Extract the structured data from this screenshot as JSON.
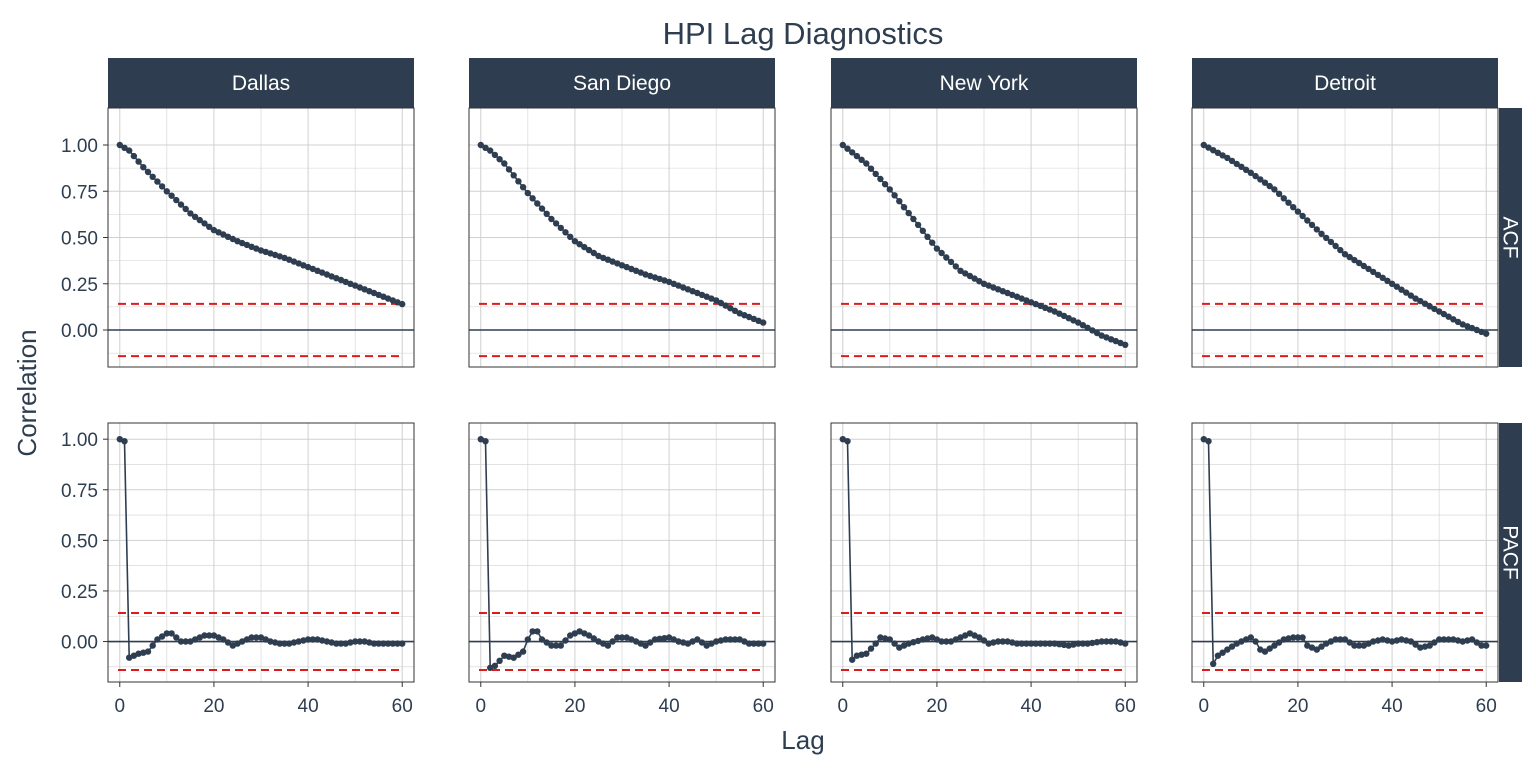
{
  "chart_data": {
    "type": "line",
    "title": "HPI Lag Diagnostics",
    "xlabel": "Lag",
    "ylabel": "Correlation",
    "xlim": [
      -2.5,
      62.5
    ],
    "x_ticks": [
      0,
      20,
      40,
      60
    ],
    "x_tick_labels": [
      "0",
      "20",
      "40",
      "60"
    ],
    "y_ticks": [
      0,
      0.25,
      0.5,
      0.75,
      1
    ],
    "y_tick_labels": [
      "0.00",
      "0.25",
      "0.50",
      "0.75",
      "1.00"
    ],
    "grid": true,
    "legend": "none",
    "confidence_bound": 0.141,
    "colors": {
      "series": "#2e3e50",
      "bound": "#dd1c1c",
      "strip": "#2e3e50",
      "grid": "#d0d0d0",
      "zero": "#2e3e50"
    },
    "columns": [
      "Dallas",
      "San Diego",
      "New York",
      "Detroit"
    ],
    "rows": [
      "ACF",
      "PACF"
    ],
    "row_ylim": {
      "ACF": [
        -0.2,
        1.2
      ],
      "PACF": [
        -0.2,
        1.08
      ]
    },
    "panels": [
      {
        "row": "ACF",
        "column": "Dallas",
        "knots": [
          [
            0,
            1.0
          ],
          [
            2,
            0.97
          ],
          [
            5,
            0.88
          ],
          [
            10,
            0.75
          ],
          [
            15,
            0.63
          ],
          [
            20,
            0.54
          ],
          [
            25,
            0.48
          ],
          [
            30,
            0.43
          ],
          [
            35,
            0.39
          ],
          [
            40,
            0.34
          ],
          [
            45,
            0.29
          ],
          [
            50,
            0.24
          ],
          [
            55,
            0.19
          ],
          [
            60,
            0.14
          ]
        ]
      },
      {
        "row": "ACF",
        "column": "San Diego",
        "knots": [
          [
            0,
            1.0
          ],
          [
            2,
            0.97
          ],
          [
            5,
            0.9
          ],
          [
            10,
            0.74
          ],
          [
            15,
            0.6
          ],
          [
            20,
            0.48
          ],
          [
            25,
            0.4
          ],
          [
            30,
            0.35
          ],
          [
            35,
            0.3
          ],
          [
            40,
            0.26
          ],
          [
            45,
            0.21
          ],
          [
            50,
            0.16
          ],
          [
            55,
            0.09
          ],
          [
            60,
            0.04
          ]
        ]
      },
      {
        "row": "ACF",
        "column": "New York",
        "knots": [
          [
            0,
            1.0
          ],
          [
            5,
            0.9
          ],
          [
            10,
            0.76
          ],
          [
            15,
            0.6
          ],
          [
            20,
            0.44
          ],
          [
            25,
            0.32
          ],
          [
            30,
            0.25
          ],
          [
            35,
            0.2
          ],
          [
            40,
            0.15
          ],
          [
            45,
            0.1
          ],
          [
            50,
            0.04
          ],
          [
            55,
            -0.03
          ],
          [
            60,
            -0.08
          ]
        ]
      },
      {
        "row": "ACF",
        "column": "Detroit",
        "knots": [
          [
            0,
            1.0
          ],
          [
            5,
            0.93
          ],
          [
            10,
            0.85
          ],
          [
            15,
            0.76
          ],
          [
            20,
            0.64
          ],
          [
            25,
            0.52
          ],
          [
            30,
            0.41
          ],
          [
            35,
            0.33
          ],
          [
            40,
            0.25
          ],
          [
            45,
            0.17
          ],
          [
            50,
            0.1
          ],
          [
            55,
            0.03
          ],
          [
            60,
            -0.02
          ]
        ]
      },
      {
        "row": "PACF",
        "column": "Dallas",
        "knots": [
          [
            0,
            1.0
          ],
          [
            1,
            0.99
          ],
          [
            2,
            -0.08
          ],
          [
            4,
            -0.06
          ],
          [
            6,
            -0.05
          ],
          [
            8,
            0.01
          ],
          [
            10,
            0.04
          ],
          [
            11,
            0.04
          ],
          [
            13,
            0.0
          ],
          [
            15,
            0.0
          ],
          [
            18,
            0.03
          ],
          [
            20,
            0.03
          ],
          [
            22,
            0.01
          ],
          [
            24,
            -0.02
          ],
          [
            26,
            0.0
          ],
          [
            28,
            0.02
          ],
          [
            30,
            0.02
          ],
          [
            32,
            0.0
          ],
          [
            34,
            -0.01
          ],
          [
            36,
            -0.01
          ],
          [
            38,
            0.0
          ],
          [
            40,
            0.01
          ],
          [
            42,
            0.01
          ],
          [
            44,
            0.0
          ],
          [
            46,
            -0.01
          ],
          [
            48,
            -0.01
          ],
          [
            50,
            0.0
          ],
          [
            52,
            0.0
          ],
          [
            54,
            -0.01
          ],
          [
            56,
            -0.01
          ],
          [
            58,
            -0.01
          ],
          [
            60,
            -0.01
          ]
        ]
      },
      {
        "row": "PACF",
        "column": "San Diego",
        "knots": [
          [
            0,
            1.0
          ],
          [
            1,
            0.99
          ],
          [
            2,
            -0.13
          ],
          [
            3,
            -0.12
          ],
          [
            5,
            -0.07
          ],
          [
            7,
            -0.08
          ],
          [
            9,
            -0.05
          ],
          [
            10,
            0.01
          ],
          [
            11,
            0.05
          ],
          [
            12,
            0.05
          ],
          [
            13,
            0.01
          ],
          [
            15,
            -0.02
          ],
          [
            17,
            -0.02
          ],
          [
            19,
            0.03
          ],
          [
            21,
            0.05
          ],
          [
            23,
            0.03
          ],
          [
            25,
            0.0
          ],
          [
            27,
            -0.02
          ],
          [
            29,
            0.02
          ],
          [
            31,
            0.02
          ],
          [
            33,
            0.0
          ],
          [
            35,
            -0.02
          ],
          [
            37,
            0.01
          ],
          [
            40,
            0.02
          ],
          [
            42,
            0.0
          ],
          [
            44,
            -0.01
          ],
          [
            46,
            0.01
          ],
          [
            48,
            -0.02
          ],
          [
            50,
            0.0
          ],
          [
            52,
            0.01
          ],
          [
            55,
            0.01
          ],
          [
            57,
            -0.01
          ],
          [
            60,
            -0.01
          ]
        ]
      },
      {
        "row": "PACF",
        "column": "New York",
        "knots": [
          [
            0,
            1.0
          ],
          [
            1,
            0.99
          ],
          [
            2,
            -0.09
          ],
          [
            3,
            -0.07
          ],
          [
            5,
            -0.06
          ],
          [
            7,
            -0.01
          ],
          [
            8,
            0.02
          ],
          [
            10,
            0.01
          ],
          [
            12,
            -0.03
          ],
          [
            14,
            -0.01
          ],
          [
            17,
            0.01
          ],
          [
            19,
            0.02
          ],
          [
            21,
            0.0
          ],
          [
            23,
            0.0
          ],
          [
            25,
            0.02
          ],
          [
            27,
            0.04
          ],
          [
            29,
            0.02
          ],
          [
            31,
            -0.01
          ],
          [
            33,
            0.0
          ],
          [
            35,
            0.0
          ],
          [
            37,
            -0.01
          ],
          [
            40,
            -0.01
          ],
          [
            43,
            -0.01
          ],
          [
            45,
            -0.01
          ],
          [
            48,
            -0.02
          ],
          [
            50,
            -0.01
          ],
          [
            52,
            -0.01
          ],
          [
            55,
            0.0
          ],
          [
            58,
            0.0
          ],
          [
            60,
            -0.01
          ]
        ]
      },
      {
        "row": "PACF",
        "column": "Detroit",
        "knots": [
          [
            0,
            1.0
          ],
          [
            1,
            0.99
          ],
          [
            2,
            -0.11
          ],
          [
            3,
            -0.07
          ],
          [
            5,
            -0.04
          ],
          [
            7,
            -0.01
          ],
          [
            9,
            0.01
          ],
          [
            10,
            0.02
          ],
          [
            11,
            0.0
          ],
          [
            12,
            -0.04
          ],
          [
            13,
            -0.05
          ],
          [
            15,
            -0.02
          ],
          [
            17,
            0.01
          ],
          [
            19,
            0.02
          ],
          [
            21,
            0.02
          ],
          [
            22,
            -0.02
          ],
          [
            24,
            -0.04
          ],
          [
            26,
            -0.01
          ],
          [
            28,
            0.01
          ],
          [
            30,
            0.01
          ],
          [
            32,
            -0.02
          ],
          [
            34,
            -0.02
          ],
          [
            36,
            0.0
          ],
          [
            38,
            0.01
          ],
          [
            40,
            0.0
          ],
          [
            42,
            0.01
          ],
          [
            44,
            0.0
          ],
          [
            46,
            -0.03
          ],
          [
            48,
            -0.02
          ],
          [
            50,
            0.01
          ],
          [
            53,
            0.01
          ],
          [
            55,
            0.0
          ],
          [
            57,
            0.01
          ],
          [
            59,
            -0.02
          ],
          [
            60,
            -0.02
          ]
        ]
      }
    ]
  }
}
